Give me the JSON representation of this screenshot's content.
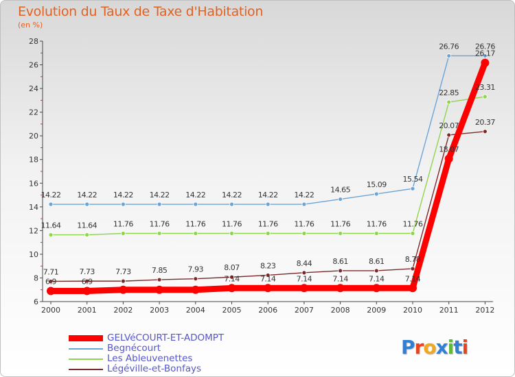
{
  "title": "Evolution du Taux de Taxe d'Habitation",
  "unit": "(en %)",
  "logo": {
    "text": "Proxiti",
    "colors": [
      "#2f7fd6",
      "#e6441c",
      "#f2a81d",
      "#2f7fd6",
      "#5fb83a",
      "#2f7fd6",
      "#e6441c"
    ]
  },
  "chart_data": {
    "type": "line",
    "x": [
      "2000",
      "2001",
      "2002",
      "2003",
      "2004",
      "2005",
      "2006",
      "2007",
      "2008",
      "2009",
      "2010",
      "2011",
      "2012"
    ],
    "ylim": [
      6,
      28
    ],
    "yticks": [
      6,
      8,
      10,
      12,
      14,
      16,
      18,
      20,
      22,
      24,
      26,
      28
    ],
    "grid": false,
    "legend_position": "bottom-left",
    "series": [
      {
        "name": "GELVéCOURT-ET-ADOMPT",
        "color": "#ff0000",
        "emphasis": true,
        "values": [
          6.9,
          6.9,
          7.0,
          7.0,
          7.0,
          7.14,
          7.14,
          7.14,
          7.14,
          7.14,
          7.14,
          18.07,
          26.17
        ],
        "labels": [
          "6.9",
          "6.9",
          "",
          "",
          "",
          "7.14",
          "7.14",
          "7.14",
          "7.14",
          "7.14",
          "7.14",
          "18.07",
          "26.17"
        ]
      },
      {
        "name": "Begnécourt",
        "color": "#6aa4d6",
        "emphasis": false,
        "values": [
          14.22,
          14.22,
          14.22,
          14.22,
          14.22,
          14.22,
          14.22,
          14.22,
          14.65,
          15.09,
          15.54,
          26.76,
          26.76
        ],
        "labels": [
          "14.22",
          "14.22",
          "14.22",
          "14.22",
          "14.22",
          "14.22",
          "14.22",
          "14.22",
          "14.65",
          "15.09",
          "15.54",
          "26.76",
          "26.76"
        ]
      },
      {
        "name": "Les Ableuvenettes",
        "color": "#8fd44d",
        "emphasis": false,
        "values": [
          11.64,
          11.64,
          11.76,
          11.76,
          11.76,
          11.76,
          11.76,
          11.76,
          11.76,
          11.76,
          11.76,
          22.85,
          23.31
        ],
        "labels": [
          "11.64",
          "11.64",
          "11.76",
          "11.76",
          "11.76",
          "11.76",
          "11.76",
          "11.76",
          "11.76",
          "11.76",
          "11.76",
          "22.85",
          "23.31"
        ]
      },
      {
        "name": "Légéville-et-Bonfays",
        "color": "#7a2a2a",
        "emphasis": false,
        "values": [
          7.71,
          7.73,
          7.73,
          7.85,
          7.93,
          8.07,
          8.23,
          8.44,
          8.61,
          8.61,
          8.78,
          20.07,
          20.37
        ],
        "labels": [
          "7.71",
          "7.73",
          "7.73",
          "7.85",
          "7.93",
          "8.07",
          "8.23",
          "8.44",
          "8.61",
          "8.61",
          "8.78",
          "20.07",
          "20.37"
        ]
      }
    ]
  }
}
